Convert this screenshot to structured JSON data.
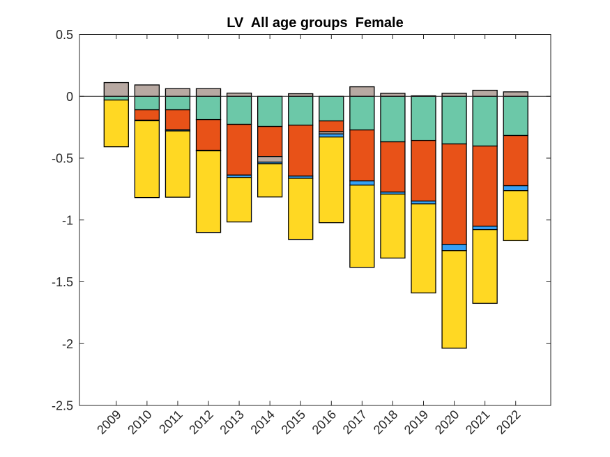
{
  "chart_data": {
    "type": "bar",
    "stacked": true,
    "title": "LV  All age groups  Female",
    "xlabel": "",
    "ylabel": "",
    "ylim": [
      -2.5,
      0.5
    ],
    "yticks": [
      0.5,
      0,
      -0.5,
      -1,
      -1.5,
      -2,
      -2.5
    ],
    "ytick_labels": [
      "0.5",
      "0",
      "-0.5",
      "-1",
      "-1.5",
      "-2",
      "-2.5"
    ],
    "categories": [
      "2009",
      "2010",
      "2011",
      "2012",
      "2013",
      "2014",
      "2015",
      "2016",
      "2017",
      "2018",
      "2019",
      "2020",
      "2021",
      "2022"
    ],
    "grid": false,
    "legend": "none",
    "zero_line": true,
    "series": [
      {
        "name": "green",
        "color": "#6CC8A8",
        "values": [
          -0.03,
          -0.109,
          -0.109,
          -0.188,
          -0.227,
          -0.244,
          -0.233,
          -0.199,
          -0.272,
          -0.368,
          -0.357,
          -0.385,
          -0.402,
          -0.317
        ]
      },
      {
        "name": "orange",
        "color": "#E85218",
        "values": [
          0,
          -0.084,
          -0.161,
          -0.248,
          -0.41,
          -0.243,
          -0.412,
          -0.087,
          -0.412,
          -0.406,
          -0.49,
          -0.812,
          -0.648,
          -0.406
        ]
      },
      {
        "name": "grey",
        "color": "#B8A9A2",
        "values": [
          0.111,
          0.092,
          0.062,
          0.062,
          0.026,
          -0.045,
          0.021,
          -0.018,
          0.077,
          0.024,
          0.004,
          0.024,
          0.049,
          0.036
        ]
      },
      {
        "name": "blue",
        "color": "#36A0F5",
        "values": [
          0,
          -0.005,
          -0.01,
          -0.005,
          -0.019,
          -0.013,
          -0.018,
          -0.025,
          -0.034,
          -0.017,
          -0.023,
          -0.051,
          -0.028,
          -0.04
        ]
      },
      {
        "name": "yellow",
        "color": "#FFD823",
        "values": [
          -0.378,
          -0.621,
          -0.536,
          -0.66,
          -0.36,
          -0.269,
          -0.494,
          -0.693,
          -0.665,
          -0.517,
          -0.72,
          -0.789,
          -0.596,
          -0.404
        ]
      }
    ]
  }
}
